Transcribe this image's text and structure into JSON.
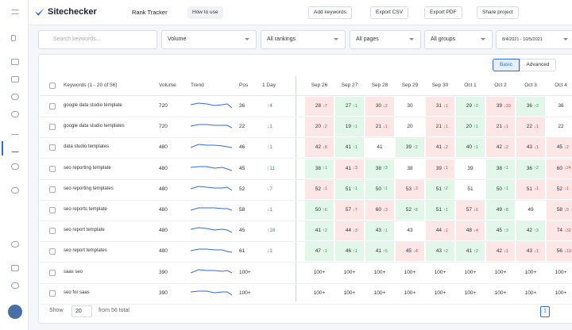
{
  "header": {
    "brand": "Sitechecker",
    "title": "Rank Tracker",
    "help": "How to use",
    "actions": [
      "Add keywords",
      "Export CSV",
      "Export PDF",
      "Share project"
    ]
  },
  "filters": {
    "search": "Search keywords...",
    "volume": "Volume",
    "rankings": "All rankings",
    "pages": "All pages",
    "groups": "All groups",
    "dates": "8/4/2021 - 10/5/2021"
  },
  "view_toggle": [
    "Basic",
    "Advanced"
  ],
  "table": {
    "columns": [
      "Keywords (1 - 20 of 56)",
      "Volume",
      "Trend",
      "Pos",
      "1 Day"
    ],
    "dates": [
      "Sep 26",
      "Sep 27",
      "Sep 28",
      "Sep 29",
      "Sep 30",
      "Oct 1",
      "Oct 2",
      "Oct 3",
      "Oct 4"
    ],
    "rows": [
      {
        "keyword": "google data studio template",
        "volume": 720,
        "pos": 36,
        "day": "↑4",
        "cells": [
          [
            28,
            "↓7"
          ],
          [
            27,
            "↑1"
          ],
          [
            30,
            "↓2"
          ],
          [
            30
          ],
          [
            31,
            "↓1"
          ],
          [
            29,
            "↑2"
          ],
          [
            39,
            "↓10"
          ],
          [
            36,
            "↑3"
          ],
          [
            36
          ]
        ]
      },
      {
        "keyword": "google data studio templates",
        "volume": 720,
        "pos": 22,
        "day": "↓1",
        "cells": [
          [
            20,
            "↓2"
          ],
          [
            19,
            "↑1"
          ],
          [
            21,
            "↓1"
          ],
          [
            20
          ],
          [
            21,
            "↓1"
          ],
          [
            20,
            "↑1"
          ],
          [
            21,
            "↓1"
          ],
          [
            22,
            "↓1"
          ],
          [
            22
          ]
        ]
      },
      {
        "keyword": "data studio templates",
        "volume": 480,
        "pos": 46,
        "day": "↑1",
        "cells": [
          [
            42,
            "↓8"
          ],
          [
            41,
            "↑1"
          ],
          [
            41
          ],
          [
            39,
            "↑2"
          ],
          [
            41,
            "↓2"
          ],
          [
            40,
            "↑1"
          ],
          [
            42,
            "↓2"
          ],
          [
            43,
            "↓1"
          ],
          [
            45,
            "↓2"
          ]
        ]
      },
      {
        "keyword": "seo reporting template",
        "volume": 480,
        "pos": 45,
        "day": "↑11",
        "cells": [
          [
            38,
            "↑1"
          ],
          [
            41,
            "↓3"
          ],
          [
            38,
            "↑3"
          ],
          [
            38
          ],
          [
            39,
            "↓1"
          ],
          [
            39
          ],
          [
            38,
            "↑1"
          ],
          [
            36,
            "↑2"
          ],
          [
            60,
            "↓24"
          ]
        ]
      },
      {
        "keyword": "seo reporting templates",
        "volume": 480,
        "pos": 52,
        "day": "↓7",
        "cells": [
          [
            52,
            "↓1"
          ],
          [
            51,
            "↑1"
          ],
          [
            50,
            "↑1"
          ],
          [
            53,
            "↓3"
          ],
          [
            51,
            "↑2"
          ],
          [
            51
          ],
          [
            50,
            "↑1"
          ],
          [
            51,
            "↓1"
          ],
          [
            52,
            "↓1"
          ]
        ]
      },
      {
        "keyword": "seo reports template",
        "volume": 480,
        "pos": 58,
        "day": "↓1",
        "cells": [
          [
            50,
            "↑6"
          ],
          [
            57,
            "↓7"
          ],
          [
            60,
            "↓3"
          ],
          [
            52,
            "↑8"
          ],
          [
            51,
            "↑1"
          ],
          [
            57,
            "↓6"
          ],
          [
            49,
            "↑8"
          ],
          [
            49
          ],
          [
            58,
            "↓9"
          ]
        ]
      },
      {
        "keyword": "seo report template",
        "volume": 480,
        "pos": 45,
        "day": "↑16",
        "cells": [
          [
            41,
            "↑2"
          ],
          [
            44,
            "↓3"
          ],
          [
            43,
            "↑1"
          ],
          [
            43
          ],
          [
            44,
            "↓1"
          ],
          [
            48,
            "↓4"
          ],
          [
            45,
            "↑3"
          ],
          [
            42,
            "↑3"
          ],
          [
            74,
            "↓32"
          ]
        ]
      },
      {
        "keyword": "seo report templates",
        "volume": 480,
        "pos": 61,
        "day": "↓1",
        "cells": [
          [
            47,
            "↑1"
          ],
          [
            46,
            "↑1"
          ],
          [
            41,
            "↑5"
          ],
          [
            45,
            "↓4"
          ],
          [
            43,
            "↑2"
          ],
          [
            41,
            "↑2"
          ],
          [
            42,
            "↓1"
          ],
          [
            43,
            "↓1"
          ],
          [
            56,
            "↓13"
          ]
        ]
      },
      {
        "keyword": "saas seo",
        "volume": 390,
        "pos": "100+",
        "day": null,
        "cells": [
          [
            "100+"
          ],
          [
            "100+"
          ],
          [
            "100+"
          ],
          [
            "100+"
          ],
          [
            "100+"
          ],
          [
            "100+"
          ],
          [
            "100+"
          ],
          [
            "100+"
          ],
          [
            "100+"
          ]
        ]
      },
      {
        "keyword": "seo for saas",
        "volume": 390,
        "pos": "100+",
        "day": null,
        "cells": [
          [
            "100+"
          ],
          [
            "100+"
          ],
          [
            "100+"
          ],
          [
            "100+"
          ],
          [
            "100+"
          ],
          [
            "100+"
          ],
          [
            "100+"
          ],
          [
            "100+"
          ],
          [
            "100+"
          ]
        ]
      }
    ]
  },
  "footer": {
    "show": "Show",
    "page_size": "20",
    "total": "from 56 total",
    "page": "1"
  }
}
